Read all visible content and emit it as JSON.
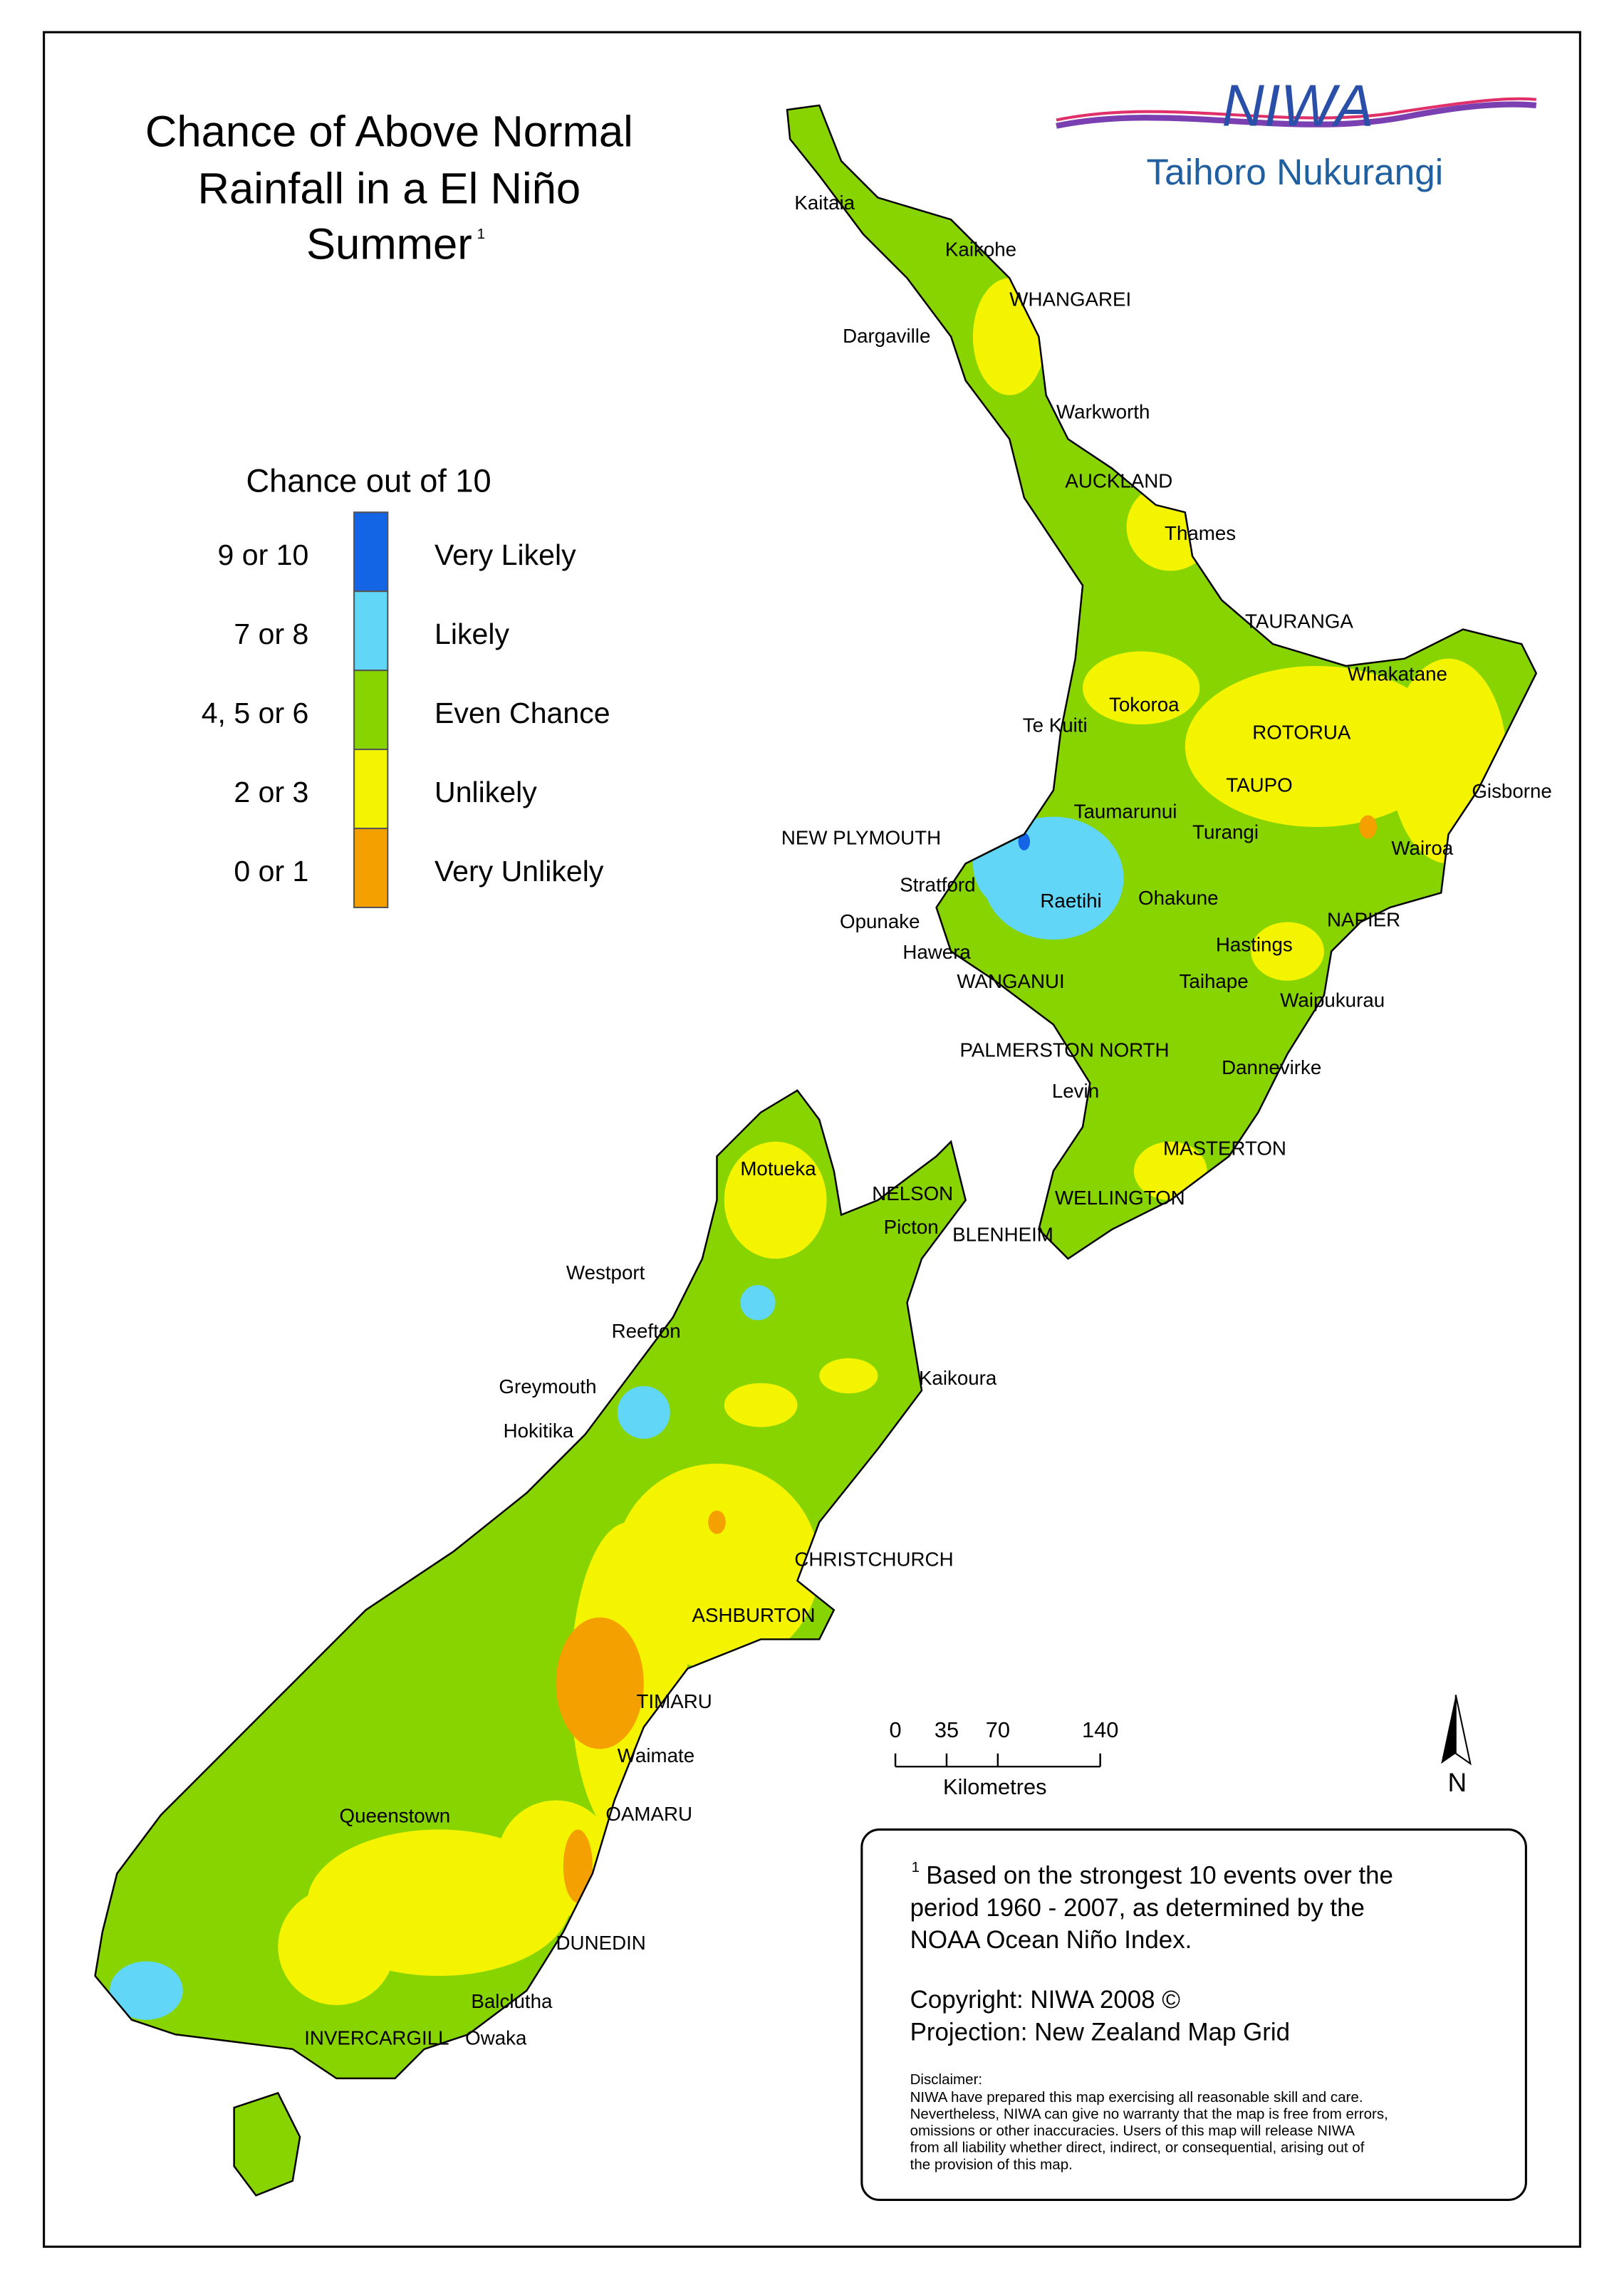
{
  "title": {
    "lines": [
      "Chance of Above Normal",
      "Rainfall in a El Niño",
      "Summer"
    ],
    "mark": "1"
  },
  "logo": {
    "name": "NIWA",
    "subtitle": "Taihoro Nukurangi"
  },
  "legend": {
    "title": "Chance out of 10",
    "items": [
      {
        "range": "9 or 10",
        "label": "Very Likely",
        "color": "#1464e6"
      },
      {
        "range": "7 or 8",
        "label": "Likely",
        "color": "#62d6f6"
      },
      {
        "range": "4, 5 or 6",
        "label": "Even Chance",
        "color": "#88d400"
      },
      {
        "range": "2 or 3",
        "label": "Unlikely",
        "color": "#f4f400"
      },
      {
        "range": "0 or 1",
        "label": "Very Unlikely",
        "color": "#f4a000"
      }
    ]
  },
  "places": [
    "Kaitaia",
    "Kaikohe",
    "WHANGAREI",
    "Dargaville",
    "Warkworth",
    "AUCKLAND",
    "Thames",
    "TAURANGA",
    "Whakatane",
    "Tokoroa",
    "Te Kuiti",
    "ROTORUA",
    "TAUPO",
    "Gisborne",
    "Taumarunui",
    "NEW PLYMOUTH",
    "Turangi",
    "Wairoa",
    "Stratford",
    "Raetihi",
    "Ohakune",
    "Opunake",
    "NAPIER",
    "Hastings",
    "Hawera",
    "WANGANUI",
    "Taihape",
    "Waipukurau",
    "PALMERSTON NORTH",
    "Dannevirke",
    "Levin",
    "MASTERTON",
    "Motueka",
    "NELSON",
    "WELLINGTON",
    "Picton",
    "BLENHEIM",
    "Westport",
    "Reefton",
    "Kaikoura",
    "Greymouth",
    "Hokitika",
    "CHRISTCHURCH",
    "ASHBURTON",
    "TIMARU",
    "Waimate",
    "OAMARU",
    "Queenstown",
    "DUNEDIN",
    "Balclutha",
    "INVERCARGILL",
    "Owaka"
  ],
  "scale_bar": {
    "ticks": [
      0,
      35,
      70,
      140
    ],
    "unit": "Kilometres"
  },
  "north": "N",
  "footnote": {
    "mark": "1",
    "lines": [
      "Based on the strongest 10 events over the",
      "period 1960 - 2007, as determined by the",
      "NOAA Ocean Niño Index."
    ]
  },
  "copyright": "Copyright: NIWA 2008 ©",
  "projection": "Projection: New Zealand Map Grid",
  "disclaimer": {
    "heading": "Disclaimer:",
    "lines": [
      "NIWA have prepared this map exercising all reasonable skill and care.",
      "Nevertheless, NIWA can give no warranty that the map is free from errors,",
      "omissions or other inaccuracies. Users of this map will release NIWA",
      "from all liability whether direct, indirect, or consequential, arising out of",
      "the provision of this map."
    ]
  }
}
